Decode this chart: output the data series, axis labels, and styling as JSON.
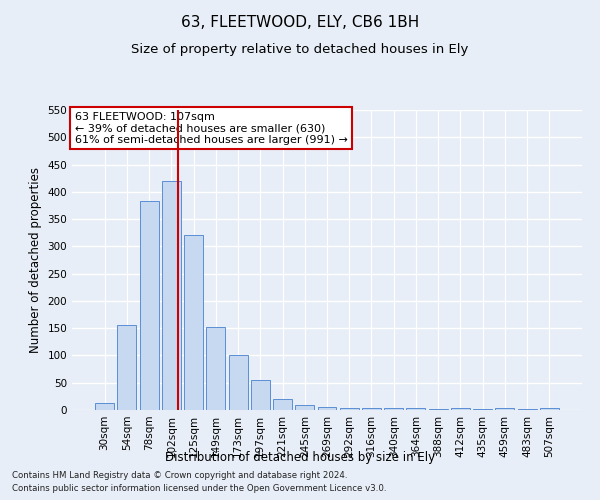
{
  "title": "63, FLEETWOOD, ELY, CB6 1BH",
  "subtitle": "Size of property relative to detached houses in Ely",
  "xlabel": "Distribution of detached houses by size in Ely",
  "ylabel": "Number of detached properties",
  "footnote1": "Contains HM Land Registry data © Crown copyright and database right 2024.",
  "footnote2": "Contains public sector information licensed under the Open Government Licence v3.0.",
  "categories": [
    "30sqm",
    "54sqm",
    "78sqm",
    "102sqm",
    "125sqm",
    "149sqm",
    "173sqm",
    "197sqm",
    "221sqm",
    "245sqm",
    "269sqm",
    "292sqm",
    "316sqm",
    "340sqm",
    "364sqm",
    "388sqm",
    "412sqm",
    "435sqm",
    "459sqm",
    "483sqm",
    "507sqm"
  ],
  "values": [
    13,
    155,
    383,
    420,
    320,
    152,
    100,
    55,
    20,
    10,
    5,
    3,
    3,
    3,
    3,
    1,
    3,
    1,
    3,
    1,
    3
  ],
  "bar_color": "#c6d9f1",
  "bar_edge_color": "#5b8ed6",
  "bar_width": 0.85,
  "property_line_x": 3.28,
  "annotation_text1": "63 FLEETWOOD: 107sqm",
  "annotation_text2": "← 39% of detached houses are smaller (630)",
  "annotation_text3": "61% of semi-detached houses are larger (991) →",
  "annotation_box_color": "#ffffff",
  "annotation_box_edge": "#cc0000",
  "vline_color": "#cc0000",
  "ylim": [
    0,
    550
  ],
  "yticks": [
    0,
    50,
    100,
    150,
    200,
    250,
    300,
    350,
    400,
    450,
    500,
    550
  ],
  "background_color": "#e8eef7",
  "grid_color": "#ffffff",
  "title_fontsize": 11,
  "subtitle_fontsize": 9.5,
  "label_fontsize": 8.5,
  "tick_fontsize": 7.5,
  "annotation_fontsize": 8
}
